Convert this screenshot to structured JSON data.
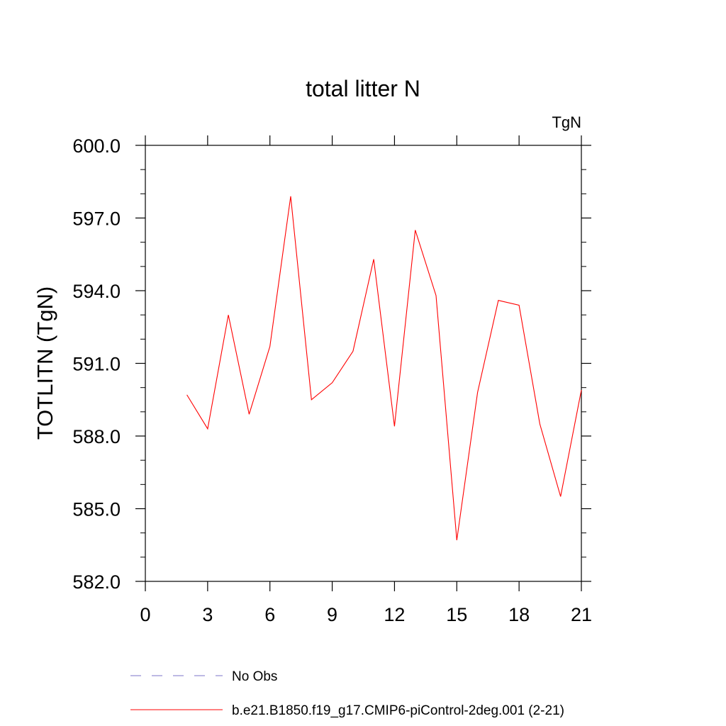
{
  "chart_data": {
    "type": "line",
    "title": "total litter N",
    "unit_label": "TgN",
    "ylabel": "TOTLITN  (TgN)",
    "xlabel": "",
    "xlim": [
      0,
      21
    ],
    "ylim": [
      582.0,
      600.0
    ],
    "x_ticks": [
      "0",
      "3",
      "6",
      "9",
      "12",
      "15",
      "18",
      "21"
    ],
    "y_ticks": [
      "582.0",
      "585.0",
      "588.0",
      "591.0",
      "594.0",
      "597.0",
      "600.0"
    ],
    "grid": false,
    "legend_position": "bottom",
    "series": [
      {
        "name": "No Obs",
        "color": "#7b73c8",
        "line_style": "dashed",
        "x": [],
        "y": []
      },
      {
        "name": "b.e21.B1850.f19_g17.CMIP6-piControl-2deg.001 (2-21)",
        "color": "#ff0000",
        "line_style": "solid",
        "x": [
          2,
          3,
          4,
          5,
          6,
          7,
          8,
          9,
          10,
          11,
          12,
          13,
          14,
          15,
          16,
          17,
          18,
          19,
          20,
          21
        ],
        "y": [
          589.7,
          588.3,
          593.0,
          588.9,
          591.7,
          597.9,
          589.5,
          590.2,
          591.5,
          595.3,
          588.4,
          596.5,
          593.8,
          583.7,
          589.8,
          593.6,
          593.4,
          588.5,
          585.5,
          589.9
        ]
      }
    ]
  }
}
